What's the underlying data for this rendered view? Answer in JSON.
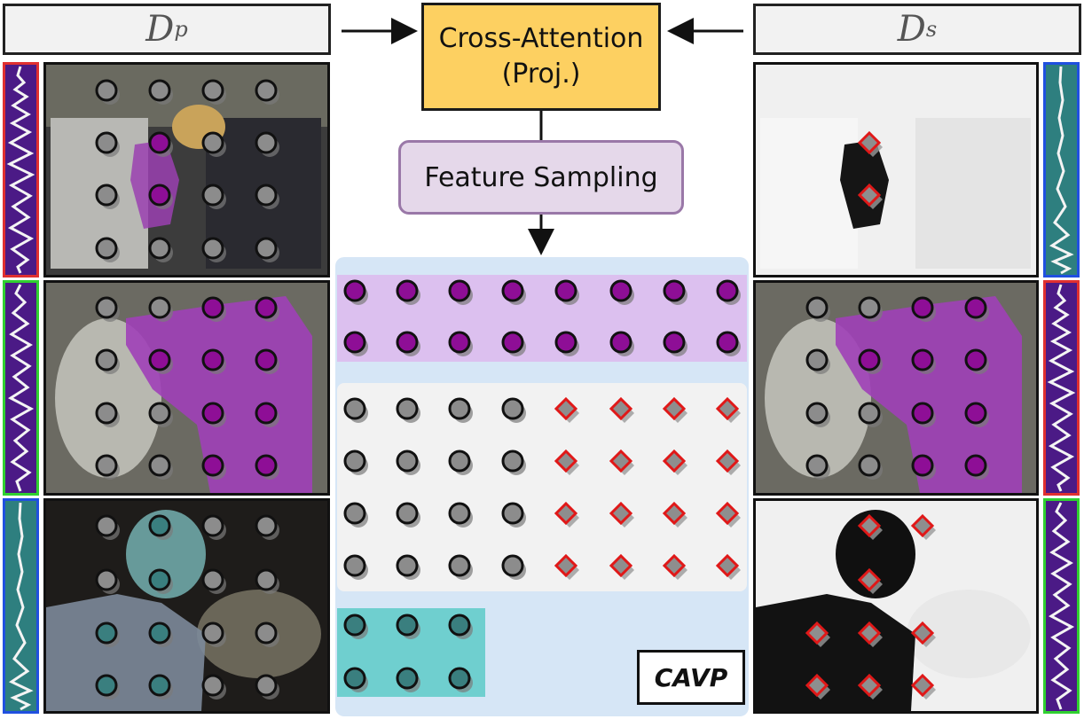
{
  "labels": {
    "dp_main": "D",
    "dp_sub": "p",
    "ds_main": "D",
    "ds_sub": "s",
    "cross_attention_line1": "Cross-Attention",
    "cross_attention_line2": "(Proj.)",
    "feature_sampling": "Feature Sampling",
    "cavp": "CAVP"
  },
  "colors": {
    "cross_attention_fill": "#fdd061",
    "feature_sampling_fill": "#e5d8ea",
    "feature_sampling_border": "#9a78a8",
    "cavp_panel": "#d6e6f6",
    "positive_purple": "#8e0e96",
    "positive_band": "#dcc0ef",
    "negative_band": "#f2f2f2",
    "teal_band": "#6fcfcf",
    "teal_token": "#3a7f7f",
    "neutral_token": "#8c8c8c",
    "diamond_red": "#e01818",
    "wave_red": "#e03030",
    "wave_green": "#30d030",
    "wave_blue": "#2050e0",
    "wave_purple_bg": "#4b1a86",
    "wave_teal_bg": "#2e7f7f"
  },
  "icons": [
    "arrow-right-icon",
    "arrow-left-icon",
    "arrow-down-icon",
    "waveform-icon",
    "token-circle-icon",
    "token-diamond-icon"
  ]
}
